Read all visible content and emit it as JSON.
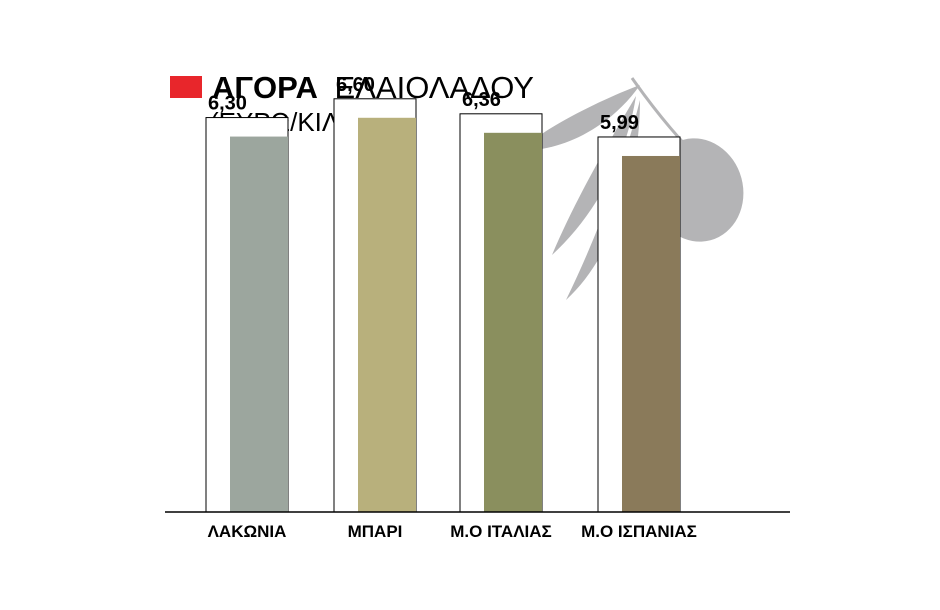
{
  "chart_data": {
    "type": "bar",
    "title_bold": "ΑΓΟΡΑ",
    "title_rest": "ΕΛΑΙΟΛΑΔΟΥ",
    "subtitle": "(ΕΥΡΩ/ΚΙΛΟ)",
    "categories": [
      "ΛΑΚΩΝΙΑ",
      "ΜΠΑΡΙ",
      "Μ.Ο ΙΤΑΛΙΑΣ",
      "Μ.Ο ΙΣΠΑΝΙΑΣ"
    ],
    "values": [
      6.3,
      6.6,
      6.36,
      5.99
    ],
    "value_labels": [
      "6,30",
      "6,60",
      "6,36",
      "5,99"
    ],
    "ylim": [
      0,
      6.9
    ],
    "grid": false,
    "legend": "none",
    "colors": {
      "title_marker": "#e8262b",
      "bars": [
        "#9ca69e",
        "#b8b07c",
        "#8a8f5e",
        "#8a7a5a"
      ],
      "bar_outline": "#000000",
      "baseline": "#000000",
      "olive_decoration": "#b4b4b6"
    },
    "icons": {
      "decoration": "olive-branch-icon",
      "title_marker": "red-square-icon"
    }
  }
}
